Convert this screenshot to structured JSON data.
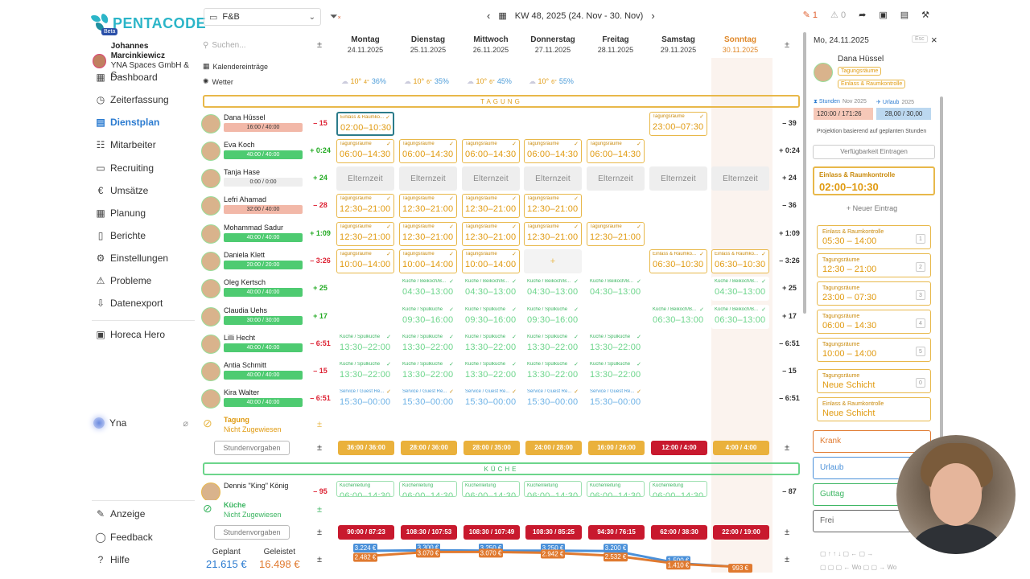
{
  "logo": {
    "text": "PENTACODE",
    "badge": "Beta"
  },
  "user": {
    "name": "Johannes Marcinkiewicz",
    "org": "YNA Spaces GmbH & C..."
  },
  "nav": [
    {
      "label": "Dashboard",
      "icon": "dashboard-icon",
      "glyph": "▦",
      "active": false
    },
    {
      "label": "Zeiterfassung",
      "icon": "stopwatch-icon",
      "glyph": "◷",
      "active": false
    },
    {
      "label": "Dienstplan",
      "icon": "calendar-grid-icon",
      "glyph": "▤",
      "active": true
    },
    {
      "label": "Mitarbeiter",
      "icon": "people-icon",
      "glyph": "☷",
      "active": false
    },
    {
      "label": "Recruiting",
      "icon": "briefcase-icon",
      "glyph": "▭",
      "active": false
    },
    {
      "label": "Umsätze",
      "icon": "euro-icon",
      "glyph": "€",
      "active": false
    },
    {
      "label": "Planung",
      "icon": "planning-icon",
      "glyph": "▦",
      "active": false
    },
    {
      "label": "Berichte",
      "icon": "report-icon",
      "glyph": "▯",
      "active": false
    },
    {
      "label": "Einstellungen",
      "icon": "gear-icon",
      "glyph": "⚙",
      "active": false
    },
    {
      "label": "Probleme",
      "icon": "warning-icon",
      "glyph": "⚠",
      "active": false
    },
    {
      "label": "Datenexport",
      "icon": "export-icon",
      "glyph": "⇩",
      "active": false
    },
    {
      "label": "Horeca Hero",
      "icon": "hero-icon",
      "glyph": "▣",
      "active": false
    }
  ],
  "nav_bottom": [
    {
      "label": "Anzeige",
      "icon": "pen-icon",
      "glyph": "✎"
    },
    {
      "label": "Feedback",
      "icon": "chat-icon",
      "glyph": "◯"
    },
    {
      "label": "Hilfe",
      "icon": "help-icon",
      "glyph": "?"
    }
  ],
  "yna": {
    "label": "Yna"
  },
  "topbar": {
    "department": "F&B",
    "week": "KW 48, 2025 (24. Nov - 30. Nov)",
    "edits": "1",
    "warnings": "0"
  },
  "grid": {
    "search_placeholder": "Suchen...",
    "days": [
      {
        "d": "Montag",
        "dt": "24.11.2025"
      },
      {
        "d": "Dienstag",
        "dt": "25.11.2025"
      },
      {
        "d": "Mittwoch",
        "dt": "26.11.2025"
      },
      {
        "d": "Donnerstag",
        "dt": "27.11.2025"
      },
      {
        "d": "Freitag",
        "dt": "28.11.2025"
      },
      {
        "d": "Samstag",
        "dt": "29.11.2025"
      },
      {
        "d": "Sonntag",
        "dt": "30.11.2025"
      }
    ],
    "calendar_label": "Kalendereinträge",
    "weather_label": "Wetter",
    "weather": [
      {
        "hi": "10°",
        "lo": "4°",
        "p": "36%"
      },
      {
        "hi": "10°",
        "lo": "6°",
        "p": "35%"
      },
      {
        "hi": "10°",
        "lo": "6°",
        "p": "45%"
      },
      {
        "hi": "10°",
        "lo": "6°",
        "p": "55%"
      }
    ],
    "section1": "TAGUNG",
    "section2": "KÜCHE",
    "unassigned": {
      "title": "Tagung",
      "sub": "Nicht Zugewiesen"
    },
    "unassigned2": {
      "title": "Küche",
      "sub": "Nicht Zugewiesen"
    },
    "stundenvorgaben": "Stundenvorgaben",
    "planned_label": "Geplant",
    "planned_value": "21.615 €",
    "done_label": "Geleistet",
    "done_value": "16.498 €"
  },
  "employees": [
    {
      "name": "Dana Hüssel",
      "hours": "16:00 / 40:00",
      "hcls": "red",
      "bal": "– 15",
      "bcls": "neg",
      "balr": "– 39",
      "shifts": [
        {
          "c": 0,
          "t": "Einlass & Raumko...",
          "tm": "02:00–10:30",
          "cls": "sel"
        },
        {
          "c": 5,
          "t": "Tagungsräume",
          "tm": "23:00–07:30",
          "cls": ""
        }
      ]
    },
    {
      "name": "Eva Koch",
      "hours": "40:00 / 40:00",
      "hcls": "",
      "bal": "+ 0:24",
      "bcls": "pos",
      "balr": "+ 0:24",
      "shifts": [
        {
          "c": 0,
          "t": "Tagungsräume",
          "tm": "06:00–14:30"
        },
        {
          "c": 1,
          "t": "Tagungsräume",
          "tm": "06:00–14:30"
        },
        {
          "c": 2,
          "t": "Tagungsräume",
          "tm": "06:00–14:30"
        },
        {
          "c": 3,
          "t": "Tagungsräume",
          "tm": "06:00–14:30"
        },
        {
          "c": 4,
          "t": "Tagungsräume",
          "tm": "06:00–14:30"
        }
      ]
    },
    {
      "name": "Tanja Hase",
      "hours": "0:00 / 0:00",
      "hcls": "grey",
      "bal": "+ 24",
      "bcls": "pos",
      "balr": "+ 24",
      "shifts": [
        {
          "c": 0,
          "tm": "Elternzeit",
          "cls": "grey"
        },
        {
          "c": 1,
          "tm": "Elternzeit",
          "cls": "grey"
        },
        {
          "c": 2,
          "tm": "Elternzeit",
          "cls": "grey"
        },
        {
          "c": 3,
          "tm": "Elternzeit",
          "cls": "grey"
        },
        {
          "c": 4,
          "tm": "Elternzeit",
          "cls": "grey"
        },
        {
          "c": 5,
          "tm": "Elternzeit",
          "cls": "grey"
        },
        {
          "c": 6,
          "tm": "Elternzeit",
          "cls": "grey"
        }
      ]
    },
    {
      "name": "Lefri Ahamad",
      "hours": "32:00 / 40:00",
      "hcls": "red",
      "bal": "– 28",
      "bcls": "neg",
      "balr": "– 36",
      "shifts": [
        {
          "c": 0,
          "t": "Tagungsräume",
          "tm": "12:30–21:00"
        },
        {
          "c": 1,
          "t": "Tagungsräume",
          "tm": "12:30–21:00"
        },
        {
          "c": 2,
          "t": "Tagungsräume",
          "tm": "12:30–21:00"
        },
        {
          "c": 3,
          "t": "Tagungsräume",
          "tm": "12:30–21:00"
        }
      ]
    },
    {
      "name": "Mohammad Sadur",
      "hours": "40:00 / 40:00",
      "hcls": "",
      "bal": "+ 1:09",
      "bcls": "pos",
      "balr": "+ 1:09",
      "shifts": [
        {
          "c": 0,
          "t": "Tagungsräume",
          "tm": "12:30–21:00"
        },
        {
          "c": 1,
          "t": "Tagungsräume",
          "tm": "12:30–21:00"
        },
        {
          "c": 2,
          "t": "Tagungsräume",
          "tm": "12:30–21:00"
        },
        {
          "c": 3,
          "t": "Tagungsräume",
          "tm": "12:30–21:00"
        },
        {
          "c": 4,
          "t": "Tagungsräume",
          "tm": "12:30–21:00"
        }
      ]
    },
    {
      "name": "Daniela Klett",
      "hours": "20:00 / 20:00",
      "hcls": "",
      "bal": "– 3:26",
      "bcls": "neg",
      "balr": "– 3:26",
      "shifts": [
        {
          "c": 0,
          "t": "Tagungsräume",
          "tm": "10:00–14:00"
        },
        {
          "c": 1,
          "t": "Tagungsräume",
          "tm": "10:00–14:00"
        },
        {
          "c": 2,
          "t": "Tagungsräume",
          "tm": "10:00–14:00"
        },
        {
          "c": 3,
          "tm": "+",
          "cls": "plus"
        },
        {
          "c": 5,
          "t": "Einlass & Raumko...",
          "tm": "06:30–10:30"
        },
        {
          "c": 6,
          "t": "Einlass & Raumko...",
          "tm": "06:30–10:30"
        }
      ]
    },
    {
      "name": "Oleg Kertsch",
      "hours": "40:00 / 40:00",
      "hcls": "",
      "bal": "+ 25",
      "bcls": "pos",
      "balr": "+ 25",
      "shifts": [
        {
          "c": 1,
          "t": "Küche / Beikoch/B...",
          "tm": "04:30–13:00",
          "cls": "green"
        },
        {
          "c": 2,
          "t": "Küche / Beikoch/B...",
          "tm": "04:30–13:00",
          "cls": "green"
        },
        {
          "c": 3,
          "t": "Küche / Beikoch/B...",
          "tm": "04:30–13:00",
          "cls": "green"
        },
        {
          "c": 4,
          "t": "Küche / Beikoch/B...",
          "tm": "04:30–13:00",
          "cls": "green"
        },
        {
          "c": 6,
          "t": "Küche / Beikoch/B...",
          "tm": "04:30–13:00",
          "cls": "green"
        }
      ]
    },
    {
      "name": "Claudia Uehs",
      "hours": "30:00 / 30:00",
      "hcls": "",
      "bal": "+ 17",
      "bcls": "pos",
      "balr": "+ 17",
      "shifts": [
        {
          "c": 1,
          "t": "Küche / Spülküche",
          "tm": "09:30–16:00",
          "cls": "green"
        },
        {
          "c": 2,
          "t": "Küche / Spülküche",
          "tm": "09:30–16:00",
          "cls": "green"
        },
        {
          "c": 3,
          "t": "Küche / Spülküche",
          "tm": "09:30–16:00",
          "cls": "green"
        },
        {
          "c": 5,
          "t": "Küche / Beikoch/B...",
          "tm": "06:30–13:00",
          "cls": "green"
        },
        {
          "c": 6,
          "t": "Küche / Beikoch/B...",
          "tm": "06:30–13:00",
          "cls": "green"
        }
      ]
    },
    {
      "name": "Lilli Hecht",
      "hours": "40:00 / 40:00",
      "hcls": "",
      "bal": "– 6:51",
      "bcls": "neg",
      "balr": "– 6:51",
      "shifts": [
        {
          "c": 0,
          "t": "Küche / Spülküche",
          "tm": "13:30–22:00",
          "cls": "green"
        },
        {
          "c": 1,
          "t": "Küche / Spülküche",
          "tm": "13:30–22:00",
          "cls": "green"
        },
        {
          "c": 2,
          "t": "Küche / Spülküche",
          "tm": "13:30–22:00",
          "cls": "green"
        },
        {
          "c": 3,
          "t": "Küche / Spülküche",
          "tm": "13:30–22:00",
          "cls": "green"
        },
        {
          "c": 4,
          "t": "Küche / Spülküche",
          "tm": "13:30–22:00",
          "cls": "green"
        }
      ]
    },
    {
      "name": "Antia Schmitt",
      "hours": "40:00 / 40:00",
      "hcls": "",
      "bal": "– 15",
      "bcls": "neg",
      "balr": "– 15",
      "shifts": [
        {
          "c": 0,
          "t": "Küche / Spülküche",
          "tm": "13:30–22:00",
          "cls": "green"
        },
        {
          "c": 1,
          "t": "Küche / Spülküche",
          "tm": "13:30–22:00",
          "cls": "green"
        },
        {
          "c": 2,
          "t": "Küche / Spülküche",
          "tm": "13:30–22:00",
          "cls": "green"
        },
        {
          "c": 3,
          "t": "Küche / Spülküche",
          "tm": "13:30–22:00",
          "cls": "green"
        },
        {
          "c": 4,
          "t": "Küche / Spülküche",
          "tm": "13:30–22:00",
          "cls": "green"
        }
      ]
    },
    {
      "name": "Kira Walter",
      "hours": "40:00 / 40:00",
      "hcls": "",
      "bal": "– 6:51",
      "bcls": "neg",
      "balr": "– 6:51",
      "shifts": [
        {
          "c": 0,
          "t": "Service / Guest Re...",
          "tm": "15:30–00:00",
          "cls": "blue"
        },
        {
          "c": 1,
          "t": "Service / Guest Re...",
          "tm": "15:30–00:00",
          "cls": "blue"
        },
        {
          "c": 2,
          "t": "Service / Guest Re...",
          "tm": "15:30–00:00",
          "cls": "blue"
        },
        {
          "c": 3,
          "t": "Service / Guest Re...",
          "tm": "15:30–00:00",
          "cls": "blue"
        },
        {
          "c": 4,
          "t": "Service / Guest Re...",
          "tm": "15:30–00:00",
          "cls": "blue"
        }
      ]
    }
  ],
  "employee2": {
    "name": "Dennis \"King\" König",
    "bal": "– 95",
    "balr": "– 87",
    "label": "Küchenleitung",
    "tm": "06:00–14:30"
  },
  "tagung_totals": [
    {
      "v": "36:00 / 36:00",
      "cls": "y"
    },
    {
      "v": "28:00 / 36:00",
      "cls": "y"
    },
    {
      "v": "28:00 / 35:00",
      "cls": "y"
    },
    {
      "v": "24:00 / 28:00",
      "cls": "y"
    },
    {
      "v": "16:00 / 26:00",
      "cls": "y"
    },
    {
      "v": "12:00 / 4:00",
      "cls": "r"
    },
    {
      "v": "4:00 / 4:00",
      "cls": "y"
    }
  ],
  "kueche_totals": [
    {
      "v": "90:00 / 87:23"
    },
    {
      "v": "108:30 / 107:53"
    },
    {
      "v": "108:30 / 107:49"
    },
    {
      "v": "108:30 / 85:25"
    },
    {
      "v": "94:30 / 76:15"
    },
    {
      "v": "62:00 / 38:30"
    },
    {
      "v": "22:00 / 19:00"
    }
  ],
  "chart_data": {
    "type": "line",
    "categories": [
      "24.11.2025",
      "25.11.2025",
      "26.11.2025",
      "27.11.2025",
      "28.11.2025",
      "29.11.2025",
      "30.11.2025"
    ],
    "series": [
      {
        "name": "",
        "color": "#4a90d9",
        "values": [
          3224,
          3300,
          3250,
          3250,
          3200,
          1500,
          993
        ]
      },
      {
        "name": "",
        "color": "#e07a30",
        "values": [
          2482,
          3070,
          3070,
          2942,
          2532,
          1410,
          993
        ]
      }
    ],
    "labels_blue": [
      "3.224 €",
      "3.300 €",
      "3.250 €",
      "3.250 €",
      "3.200 €",
      "1.500 €",
      ""
    ],
    "labels_orange": [
      "2.482 €",
      "3.070 €",
      "3.070 €",
      "2.942 €",
      "2.532 €",
      "1.410 €",
      "993 €"
    ],
    "ylim": [
      0,
      4000
    ]
  },
  "panel": {
    "date": "Mo, 24.11.2025",
    "esc": "Esc",
    "name": "Dana Hüssel",
    "tag1": "Tagungsräume",
    "tag2": "Einlass & Raumkontrolle",
    "hours_label": "Stunden",
    "hours_month": "Nov 2025",
    "hours_value": "120:00 / 171:26",
    "leave_label": "Urlaub",
    "leave_year": "2025",
    "leave_value": "28,00 / 30,00",
    "projection": "Projektion basierend auf geplanten Stunden",
    "availability": "Verfügbarkeit Eintragen",
    "selected": {
      "t": "Einlass & Raumkontrolle",
      "tm": "02:00–10:30"
    },
    "new_entry": "Neuer Eintrag",
    "templates": [
      {
        "t": "Einlass & Raumkontrolle",
        "tm": "05:30 – 14:00",
        "n": "1"
      },
      {
        "t": "Tagungsräume",
        "tm": "12:30 – 21:00",
        "n": "2"
      },
      {
        "t": "Tagungsräume",
        "tm": "23:00 – 07:30",
        "n": "3"
      },
      {
        "t": "Tagungsräume",
        "tm": "06:00 – 14:30",
        "n": "4"
      },
      {
        "t": "Tagungsräume",
        "tm": "10:00 – 14:00",
        "n": "5"
      },
      {
        "t": "Tagungsräume",
        "tm": "Neue Schicht",
        "n": "0"
      },
      {
        "t": "Einlass & Raumkontrolle",
        "tm": "Neue Schicht",
        "n": ""
      }
    ],
    "status": [
      {
        "label": "Krank",
        "color": "#e07a30",
        "key": "k"
      },
      {
        "label": "Urlaub",
        "color": "#4a90d9",
        "key": ""
      },
      {
        "label": "Guttag",
        "color": "#3bb561",
        "key": ""
      },
      {
        "label": "Frei",
        "color": "#666",
        "key": ""
      }
    ],
    "kb_wo": "Wo"
  }
}
